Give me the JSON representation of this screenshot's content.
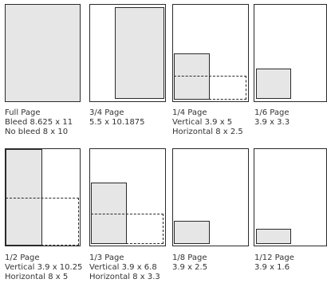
{
  "sizes": [
    {
      "name": "Full Page",
      "lines": [
        "Bleed 8.625 x 11",
        "No bleed 8 x 10"
      ]
    },
    {
      "name": "3/4 Page",
      "lines": [
        "5.5 x 10.1875"
      ]
    },
    {
      "name": "1/4 Page",
      "lines": [
        "Vertical 3.9 x 5",
        "Horizontal 8 x 2.5"
      ]
    },
    {
      "name": "1/6 Page",
      "lines": [
        "3.9 x 3.3"
      ]
    },
    {
      "name": "1/2 Page",
      "lines": [
        "Vertical 3.9 x 10.25",
        "Horizontal 8 x 5"
      ]
    },
    {
      "name": "1/3 Page",
      "lines": [
        "Vertical 3.9 x 6.8",
        "Horizontal 8 x 3.3"
      ]
    },
    {
      "name": "1/8 Page",
      "lines": [
        "3.9 x 2.5"
      ]
    },
    {
      "name": "1/12 Page",
      "lines": [
        "3.9 x 1.6"
      ]
    }
  ],
  "colors": {
    "ad_fill": "#e6e6e6",
    "outline": "#2a2a2a",
    "text": "#333333"
  }
}
